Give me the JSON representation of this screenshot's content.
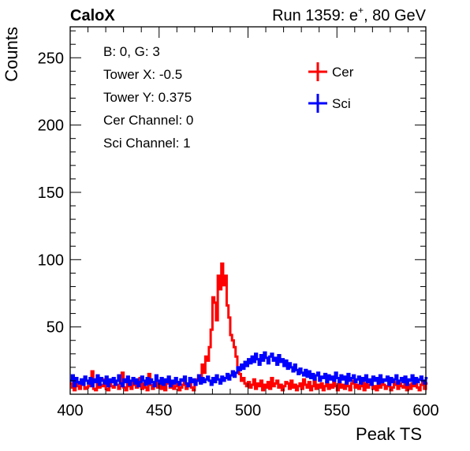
{
  "header": {
    "left_label": "CaloX",
    "run_label": "Run 1359: e",
    "run_sup": "+",
    "run_suffix": ", 80 GeV"
  },
  "info_box": {
    "lines": [
      "B: 0, G: 3",
      "Tower X: -0.5",
      "Tower Y: 0.375",
      "Cer Channel: 0",
      "Sci Channel: 1"
    ]
  },
  "colors": {
    "cer": "#ff0000",
    "sci": "#0000ff",
    "axis": "#000000"
  },
  "chart_data": {
    "type": "line",
    "style": "step-histogram",
    "xlabel": "Peak TS",
    "ylabel": "Counts",
    "xlim": [
      400,
      600
    ],
    "ylim": [
      0,
      273
    ],
    "xticks": [
      400,
      450,
      500,
      550,
      600
    ],
    "yticks": [
      50,
      100,
      150,
      200,
      250
    ],
    "legend": {
      "placement": "top-right",
      "entries": [
        "Cer",
        "Sci"
      ]
    },
    "bin_width": 1,
    "x_start": 400,
    "series": [
      {
        "name": "Cer",
        "color": "#ff0000",
        "values": [
          8,
          5,
          3,
          9,
          6,
          4,
          10,
          7,
          4,
          5,
          6,
          8,
          17,
          4,
          3,
          9,
          5,
          7,
          6,
          11,
          4,
          3,
          8,
          6,
          5,
          9,
          7,
          4,
          6,
          16,
          5,
          3,
          8,
          6,
          4,
          10,
          7,
          5,
          6,
          12,
          4,
          8,
          5,
          3,
          15,
          7,
          4,
          6,
          9,
          5,
          10,
          4,
          6,
          3,
          8,
          11,
          5,
          7,
          4,
          6,
          9,
          3,
          5,
          7,
          10,
          4,
          6,
          8,
          5,
          3,
          7,
          11,
          14,
          9,
          22,
          16,
          28,
          25,
          35,
          48,
          72,
          68,
          55,
          88,
          78,
          97,
          81,
          88,
          66,
          57,
          44,
          40,
          35,
          28,
          20,
          15,
          10,
          12,
          8,
          6,
          9,
          5,
          7,
          11,
          4,
          8,
          6,
          10,
          3,
          7,
          5,
          9,
          4,
          12,
          6,
          8,
          10,
          5,
          7,
          3,
          6,
          9,
          8,
          4,
          10,
          5,
          7,
          3,
          6,
          8,
          4,
          11,
          7,
          5,
          9,
          3,
          6,
          10,
          4,
          7,
          5,
          8,
          3,
          6,
          9,
          4,
          7,
          5,
          10,
          6,
          3,
          8,
          5,
          7,
          4,
          9,
          6,
          3,
          8,
          10,
          5,
          7,
          4,
          6,
          9,
          3,
          8,
          5,
          7,
          10,
          4,
          6,
          3,
          9,
          5,
          8,
          7,
          4,
          6,
          10,
          3,
          5,
          9,
          7,
          4,
          8,
          6,
          5,
          11,
          3,
          7,
          4,
          8,
          6,
          9,
          5,
          3,
          7,
          10,
          4,
          8
        ]
      },
      {
        "name": "Sci",
        "color": "#0000ff",
        "values": [
          10,
          14,
          6,
          12,
          9,
          8,
          11,
          7,
          13,
          10,
          8,
          12,
          6,
          11,
          9,
          14,
          7,
          12,
          10,
          8,
          13,
          6,
          11,
          9,
          12,
          7,
          10,
          14,
          8,
          6,
          11,
          9,
          13,
          7,
          10,
          12,
          8,
          11,
          6,
          9,
          13,
          10,
          7,
          12,
          8,
          11,
          9,
          6,
          14,
          10,
          8,
          12,
          7,
          11,
          9,
          13,
          6,
          10,
          8,
          12,
          9,
          7,
          11,
          10,
          13,
          8,
          6,
          12,
          9,
          11,
          7,
          10,
          14,
          8,
          12,
          9,
          11,
          13,
          10,
          7,
          12,
          9,
          14,
          11,
          8,
          13,
          10,
          12,
          15,
          11,
          14,
          17,
          13,
          16,
          20,
          18,
          22,
          19,
          24,
          21,
          26,
          23,
          28,
          24,
          30,
          26,
          22,
          29,
          25,
          31,
          27,
          23,
          28,
          30,
          25,
          27,
          22,
          29,
          24,
          26,
          21,
          25,
          19,
          23,
          20,
          17,
          22,
          18,
          15,
          19,
          16,
          14,
          18,
          13,
          17,
          12,
          15,
          11,
          14,
          16,
          10,
          13,
          12,
          15,
          9,
          14,
          11,
          13,
          10,
          16,
          12,
          9,
          14,
          11,
          13,
          8,
          15,
          10,
          12,
          14,
          9,
          11,
          13,
          8,
          12,
          10,
          14,
          9,
          11,
          7,
          13,
          10,
          12,
          8,
          14,
          9,
          11,
          10,
          13,
          7,
          12,
          9,
          11,
          14,
          8,
          10,
          12,
          9,
          13,
          7,
          11,
          10,
          14,
          8,
          12,
          9,
          11,
          13,
          10,
          8,
          12
        ]
      }
    ]
  }
}
